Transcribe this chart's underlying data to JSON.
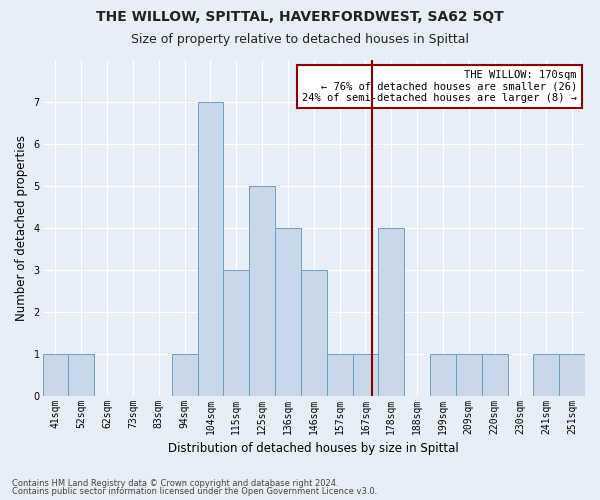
{
  "title": "THE WILLOW, SPITTAL, HAVERFORDWEST, SA62 5QT",
  "subtitle": "Size of property relative to detached houses in Spittal",
  "xlabel": "Distribution of detached houses by size in Spittal",
  "ylabel": "Number of detached properties",
  "categories": [
    "41sqm",
    "52sqm",
    "62sqm",
    "73sqm",
    "83sqm",
    "94sqm",
    "104sqm",
    "115sqm",
    "125sqm",
    "136sqm",
    "146sqm",
    "157sqm",
    "167sqm",
    "178sqm",
    "188sqm",
    "199sqm",
    "209sqm",
    "220sqm",
    "230sqm",
    "241sqm",
    "251sqm"
  ],
  "values": [
    1,
    1,
    0,
    0,
    0,
    1,
    7,
    3,
    5,
    4,
    3,
    1,
    1,
    4,
    0,
    1,
    1,
    1,
    0,
    1,
    1
  ],
  "bar_color": "#c8d8e8",
  "bar_edge_color": "#6aa0c0",
  "vline_color": "#8b0000",
  "annotation_title": "THE WILLOW: 170sqm",
  "annotation_line1": "← 76% of detached houses are smaller (26)",
  "annotation_line2": "24% of semi-detached houses are larger (8) →",
  "annotation_box_color": "#8b0000",
  "footer_line1": "Contains HM Land Registry data © Crown copyright and database right 2024.",
  "footer_line2": "Contains public sector information licensed under the Open Government Licence v3.0.",
  "ylim": [
    0,
    8
  ],
  "yticks": [
    0,
    1,
    2,
    3,
    4,
    5,
    6,
    7
  ],
  "fig_bg_color": "#e8eef8",
  "plot_bg_color": "#e8eef8",
  "title_fontsize": 10,
  "subtitle_fontsize": 9,
  "tick_fontsize": 7,
  "ylabel_fontsize": 8.5,
  "xlabel_fontsize": 8.5,
  "annot_fontsize": 7.5,
  "footer_fontsize": 6
}
